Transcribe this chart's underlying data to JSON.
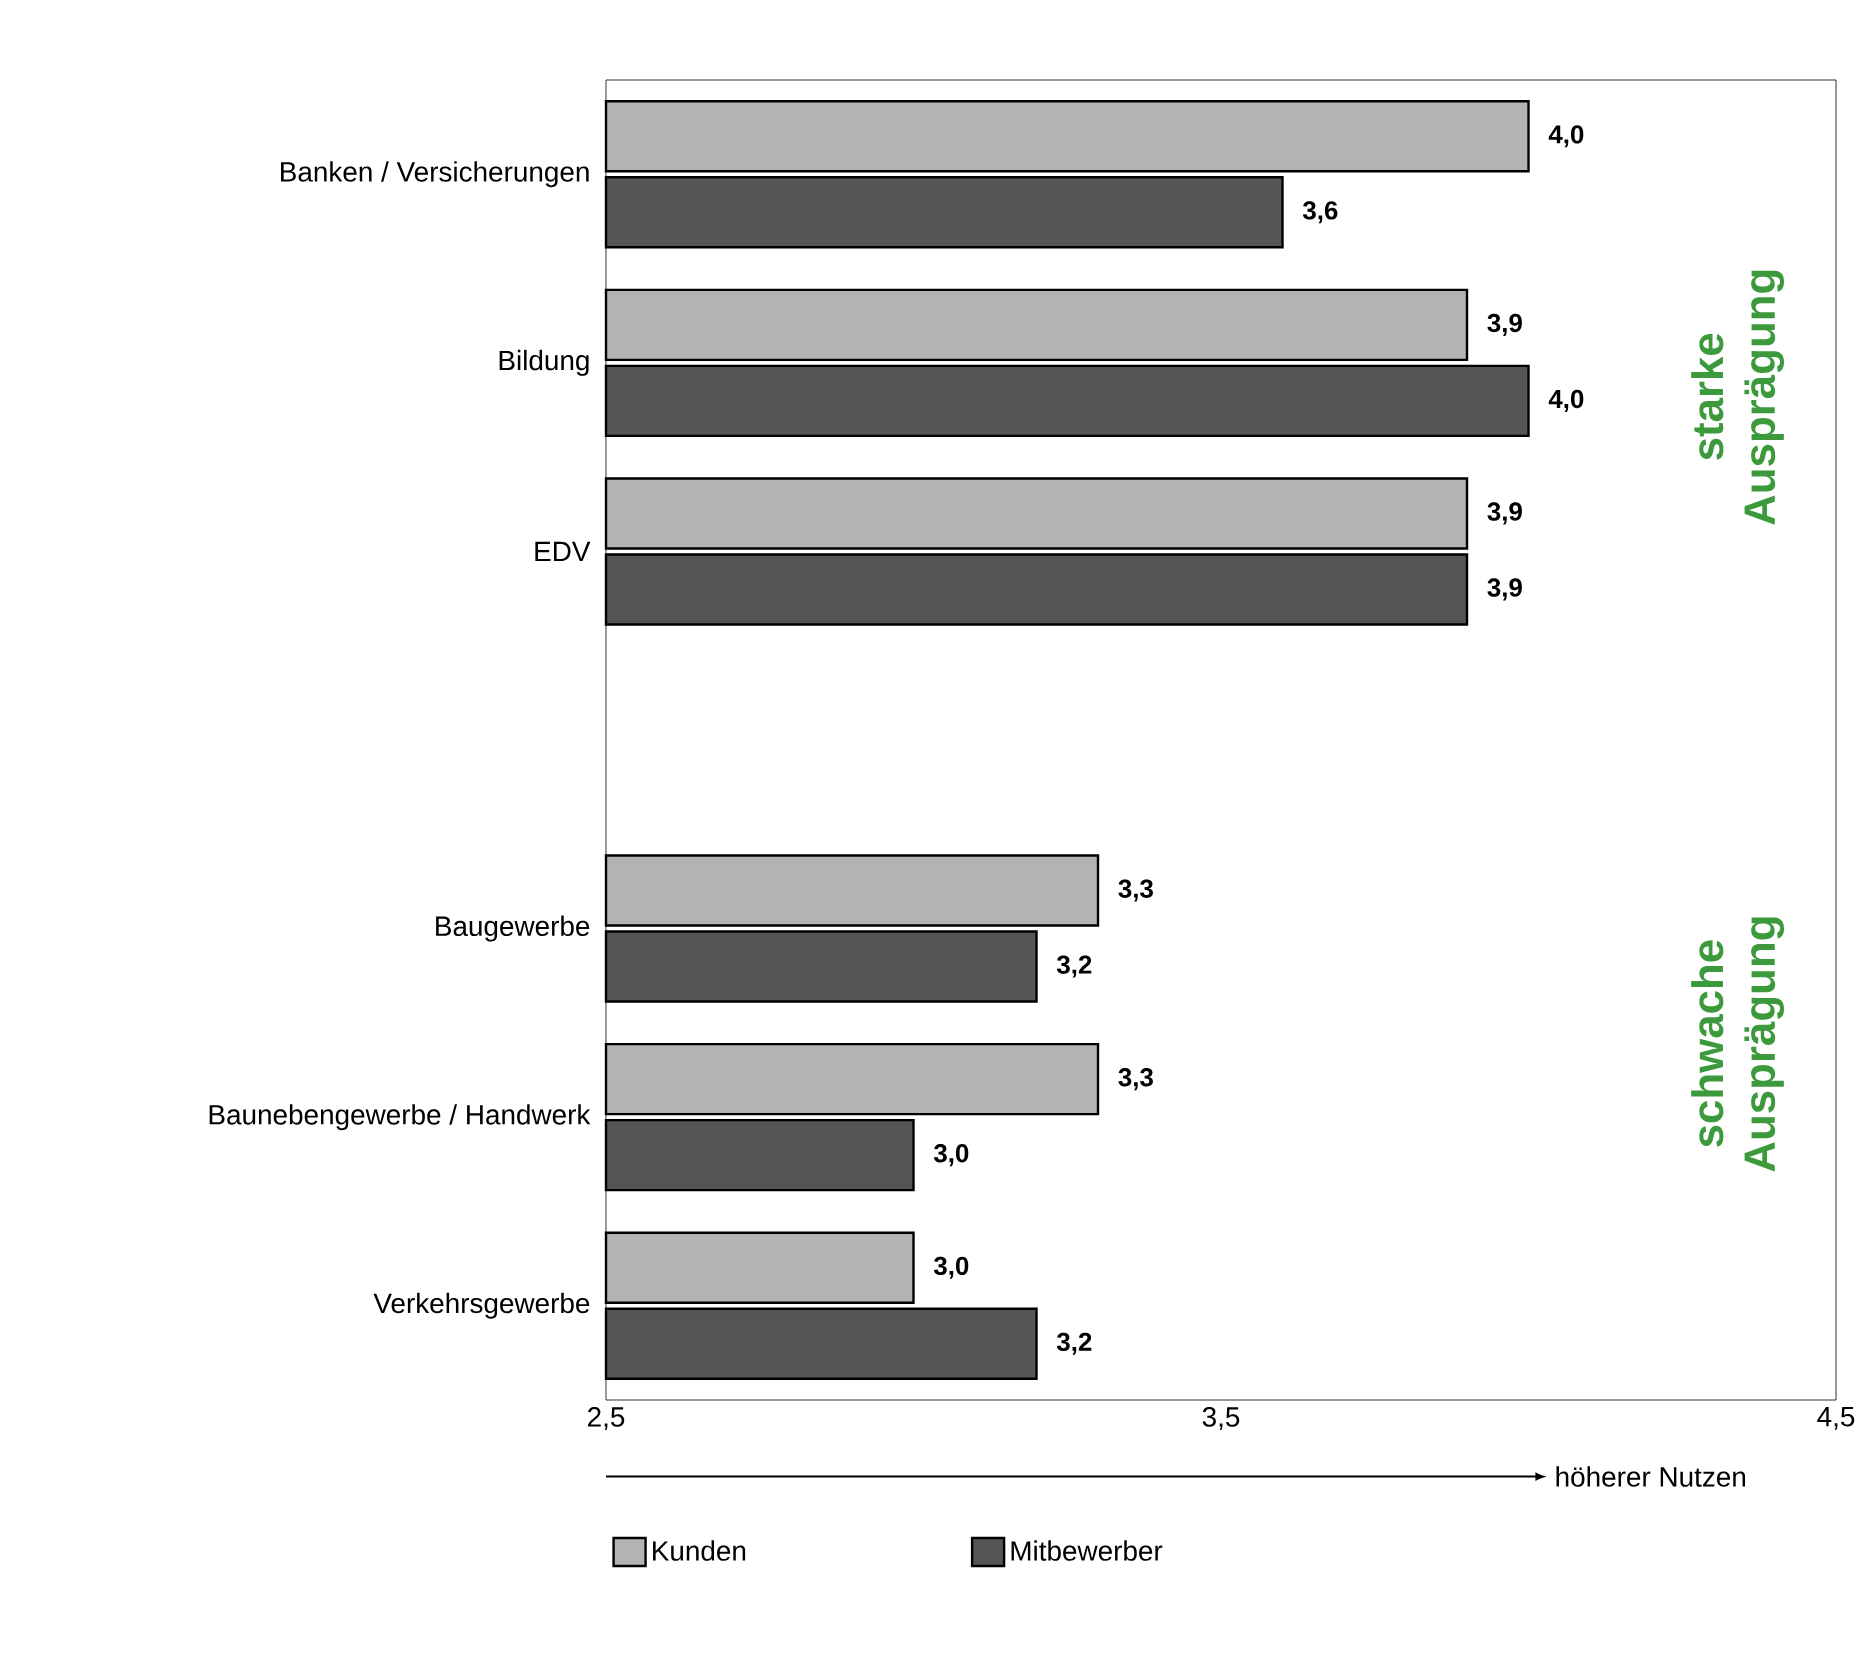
{
  "chart_data": {
    "type": "bar",
    "orientation": "horizontal",
    "categories": [
      "Banken / Versicherungen",
      "Bildung",
      "EDV",
      null,
      "Baugewerbe",
      "Baunebengewerbe / Handwerk",
      "Verkehrsgewerbe"
    ],
    "series": [
      {
        "name": "Kunden",
        "color": "#b3b3b3",
        "values": [
          4.0,
          3.9,
          3.9,
          null,
          3.3,
          3.3,
          3.0
        ],
        "value_labels": [
          "4,0",
          "3,9",
          "3,9",
          null,
          "3,3",
          "3,3",
          "3,0"
        ]
      },
      {
        "name": "Mitbewerber",
        "color": "#555555",
        "values": [
          3.6,
          4.0,
          3.9,
          null,
          3.2,
          3.0,
          3.2
        ],
        "value_labels": [
          "3,6",
          "4,0",
          "3,9",
          null,
          "3,2",
          "3,0",
          "3,2"
        ]
      }
    ],
    "xlim": [
      2.5,
      4.5
    ],
    "xticks": [
      {
        "value": 2.5,
        "label": "2,5"
      },
      {
        "value": 3.5,
        "label": "3,5"
      },
      {
        "value": 4.5,
        "label": "4,5"
      }
    ],
    "legend": "bottom left",
    "annotations": [
      "starke Ausprägung",
      "schwache Ausprägung",
      "höherer Nutzen"
    ]
  }
}
